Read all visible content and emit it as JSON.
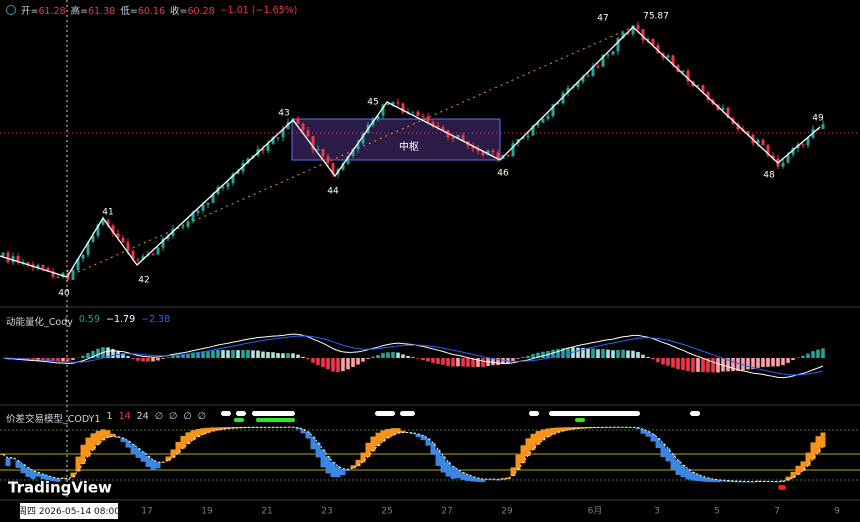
{
  "header": {
    "ohlc": [
      {
        "label": "开=",
        "value": "61.28"
      },
      {
        "label": "高=",
        "value": "61.38"
      },
      {
        "label": "低=",
        "value": "60.16"
      },
      {
        "label": "收=",
        "value": "60.28"
      }
    ],
    "change": "−1.01 (−1.65%)"
  },
  "main_pane": {
    "pivots": [
      "40",
      "41",
      "42",
      "43",
      "44",
      "45",
      "46",
      "47",
      "48",
      "49"
    ],
    "high_label": "75.87",
    "zone_label": "中枢"
  },
  "momentum_pane": {
    "title": "动能量化_Cody",
    "values": [
      "0.59",
      "−1.79",
      "−2.38"
    ]
  },
  "spread_pane": {
    "title": "价差交易模型_CODY1",
    "params": [
      "1",
      "14",
      "24"
    ],
    "flags": [
      "∅",
      "∅",
      "∅",
      "∅"
    ]
  },
  "x_axis": {
    "ticks": [
      "17",
      "19",
      "21",
      "23",
      "25",
      "27",
      "29",
      "6月",
      "3",
      "5",
      "7",
      "9"
    ]
  },
  "crosshair_label": "周四 2026-05-14   08:00",
  "watermark": "TradingView"
}
